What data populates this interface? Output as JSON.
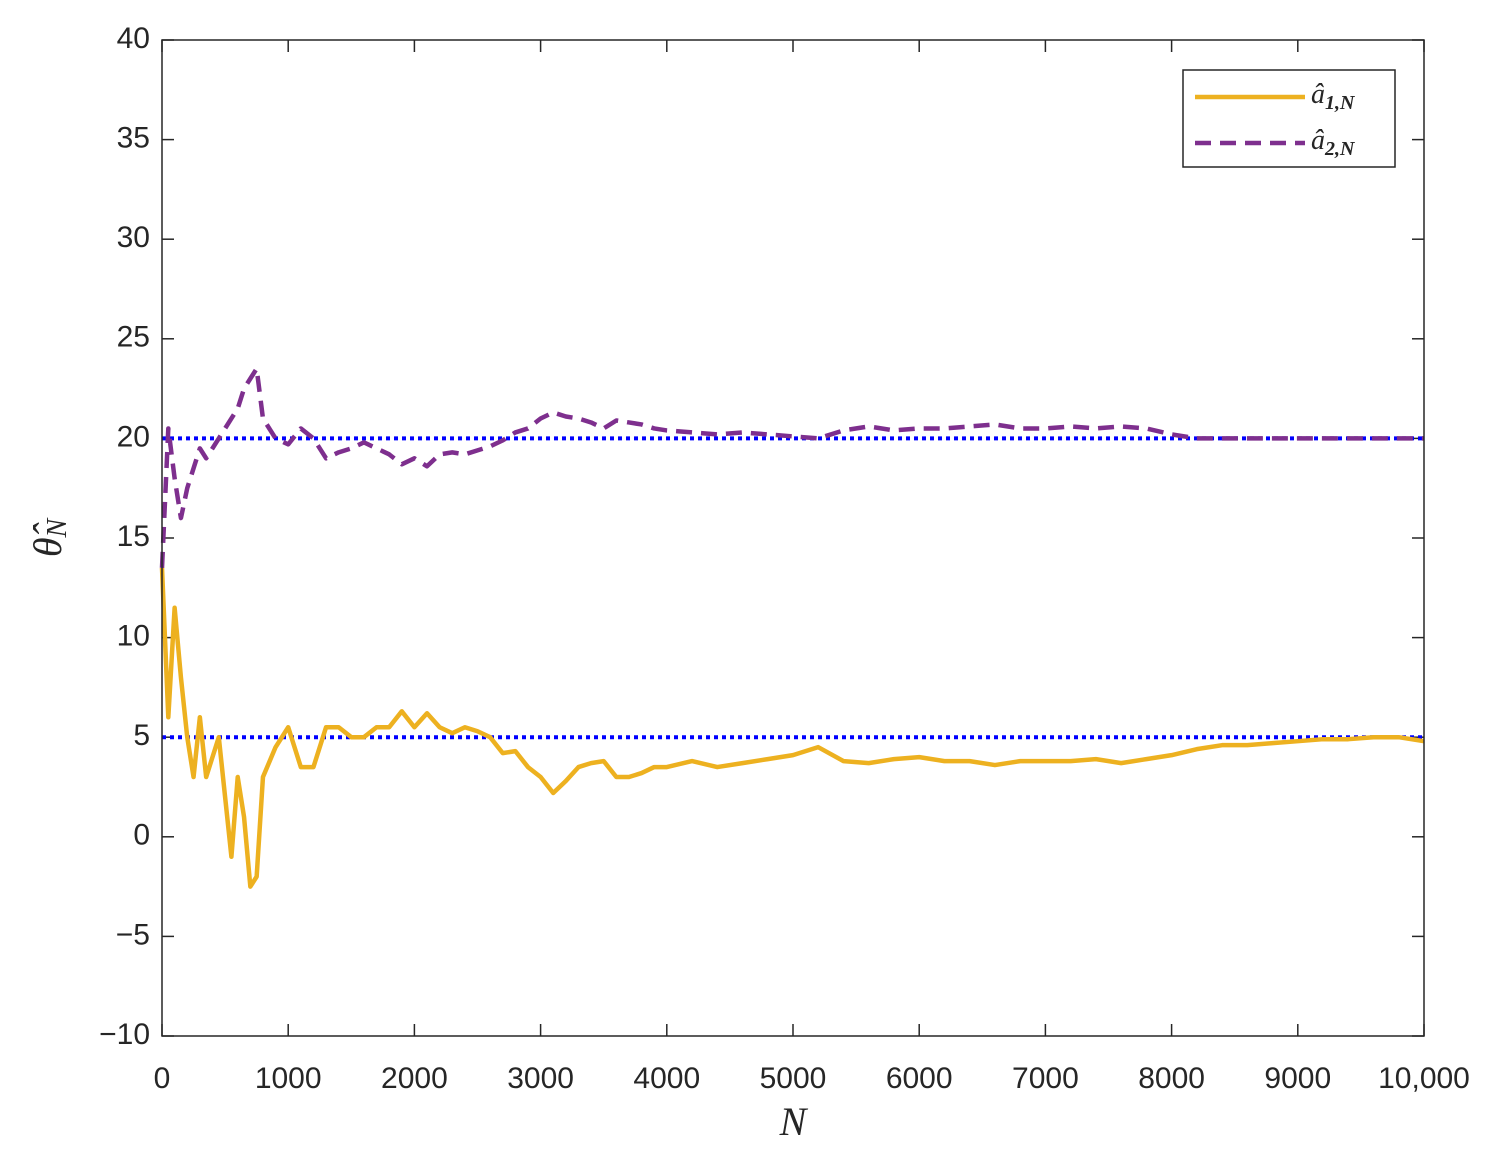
{
  "chart_data": {
    "type": "line",
    "xlabel": "N",
    "ylabel": {
      "text": "θ̂",
      "sub": "N"
    },
    "x": [
      0,
      50,
      100,
      150,
      200,
      250,
      300,
      350,
      400,
      450,
      500,
      550,
      600,
      650,
      700,
      750,
      800,
      900,
      1000,
      1100,
      1200,
      1300,
      1400,
      1500,
      1600,
      1700,
      1800,
      1900,
      2000,
      2100,
      2200,
      2300,
      2400,
      2500,
      2600,
      2700,
      2800,
      2900,
      3000,
      3100,
      3200,
      3300,
      3400,
      3500,
      3600,
      3700,
      3800,
      3900,
      4000,
      4200,
      4400,
      4600,
      4800,
      5000,
      5200,
      5400,
      5600,
      5800,
      6000,
      6200,
      6400,
      6600,
      6800,
      7000,
      7200,
      7400,
      7600,
      7800,
      8000,
      8200,
      8400,
      8600,
      8800,
      9000,
      9200,
      9400,
      9600,
      9800,
      10000
    ],
    "series": [
      {
        "name": {
          "text": "â",
          "sub": "1,N"
        },
        "color": "#edb120",
        "linestyle": "solid",
        "values": [
          13.5,
          6,
          11.5,
          8,
          5,
          3,
          6,
          3,
          4,
          5,
          2,
          -1,
          3,
          1,
          -2.5,
          -2,
          3,
          4.5,
          5.5,
          3.5,
          3.5,
          5.5,
          5.5,
          5,
          5,
          5.5,
          5.5,
          6.3,
          5.5,
          6.2,
          5.5,
          5.2,
          5.5,
          5.3,
          5,
          4.2,
          4.3,
          3.5,
          3,
          2.2,
          2.8,
          3.5,
          3.7,
          3.8,
          3,
          3,
          3.2,
          3.5,
          3.5,
          3.8,
          3.5,
          3.7,
          3.9,
          4.1,
          4.5,
          3.8,
          3.7,
          3.9,
          4,
          3.8,
          3.8,
          3.6,
          3.8,
          3.8,
          3.8,
          3.9,
          3.7,
          3.9,
          4.1,
          4.4,
          4.6,
          4.6,
          4.7,
          4.8,
          4.9,
          4.9,
          5,
          5,
          4.8
        ]
      },
      {
        "name": {
          "text": "â",
          "sub": "2,N"
        },
        "color": "#7e2f8e",
        "linestyle": "dashed",
        "values": [
          13.5,
          20.5,
          18,
          16,
          17.5,
          18.5,
          19.5,
          19,
          19.5,
          20,
          20.5,
          21,
          21.5,
          22.5,
          23,
          23.5,
          21,
          20,
          19.7,
          20.5,
          20,
          19,
          19.3,
          19.5,
          19.8,
          19.5,
          19.2,
          18.7,
          19,
          18.6,
          19.2,
          19.3,
          19.2,
          19.4,
          19.6,
          19.9,
          20.3,
          20.5,
          21,
          21.3,
          21.1,
          21,
          20.8,
          20.5,
          20.9,
          20.8,
          20.7,
          20.5,
          20.4,
          20.3,
          20.2,
          20.3,
          20.2,
          20.1,
          20,
          20.4,
          20.6,
          20.4,
          20.5,
          20.5,
          20.6,
          20.7,
          20.5,
          20.5,
          20.6,
          20.5,
          20.6,
          20.5,
          20.2,
          20,
          20,
          20,
          20,
          20,
          20,
          20,
          20,
          20,
          20
        ]
      }
    ],
    "reference_lines": [
      {
        "value": 20,
        "color": "#0000ff",
        "linestyle": "dotted"
      },
      {
        "value": 5,
        "color": "#0000ff",
        "linestyle": "dotted"
      }
    ],
    "xlim": [
      0,
      10000
    ],
    "xticks": [
      0,
      1000,
      2000,
      3000,
      4000,
      5000,
      6000,
      7000,
      8000,
      9000,
      {
        "value": 10000,
        "label": "10,000"
      }
    ],
    "ylim": [
      -10,
      40
    ],
    "yticks": [
      {
        "value": -10,
        "label": "−10"
      },
      {
        "value": -5,
        "label": "−5"
      },
      0,
      5,
      10,
      15,
      20,
      25,
      30,
      35,
      40
    ],
    "legend": "upper right",
    "grid": false
  }
}
